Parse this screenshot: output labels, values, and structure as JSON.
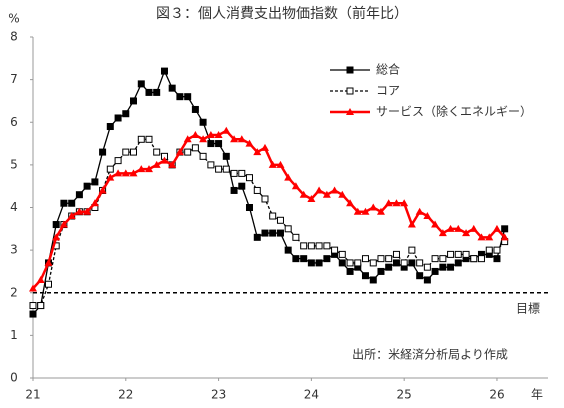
{
  "chart_data": {
    "type": "line",
    "title": "図３：個人消費支出物価指数（前年比）",
    "y_label": "%",
    "x_label": "年",
    "source": "出所：米経済分析局より作成",
    "xlim": [
      21,
      26.55
    ],
    "xticks": [
      21,
      22,
      23,
      24,
      25,
      26
    ],
    "ylim": [
      0,
      8
    ],
    "yticks": [
      0,
      1,
      2,
      3,
      4,
      5,
      6,
      7,
      8
    ],
    "grid": false,
    "legend": "upper right",
    "reference_lines": [
      {
        "value": 2,
        "label": "目標"
      }
    ],
    "x": [
      21,
      21.083,
      21.167,
      21.25,
      21.333,
      21.417,
      21.5,
      21.583,
      21.667,
      21.75,
      21.833,
      21.917,
      22,
      22.083,
      22.167,
      22.25,
      22.333,
      22.417,
      22.5,
      22.583,
      22.667,
      22.75,
      22.833,
      22.917,
      23,
      23.083,
      23.167,
      23.25,
      23.333,
      23.417,
      23.5,
      23.583,
      23.667,
      23.75,
      23.833,
      23.917,
      24,
      24.083,
      24.167,
      24.25,
      24.333,
      24.417,
      24.5,
      24.583,
      24.667,
      24.75,
      24.833,
      24.917,
      25,
      25.083,
      25.167,
      25.25,
      25.333,
      25.417,
      25.5,
      25.583,
      25.667,
      25.75,
      25.833,
      25.917,
      26,
      26.083
    ],
    "series": [
      {
        "name": "総合",
        "color": "#000000",
        "values": [
          1.5,
          1.7,
          2.7,
          3.6,
          4.1,
          4.1,
          4.3,
          4.5,
          4.6,
          5.3,
          5.9,
          6.1,
          6.2,
          6.5,
          6.9,
          6.7,
          6.7,
          7.2,
          6.8,
          6.6,
          6.6,
          6.3,
          6.0,
          5.5,
          5.5,
          5.2,
          4.4,
          4.5,
          4.0,
          3.3,
          3.4,
          3.4,
          3.4,
          3.0,
          2.8,
          2.8,
          2.7,
          2.7,
          2.8,
          2.9,
          2.7,
          2.5,
          2.6,
          2.4,
          2.3,
          2.5,
          2.6,
          2.7,
          2.6,
          2.7,
          2.4,
          2.3,
          2.5,
          2.6,
          2.6,
          2.7,
          2.8,
          2.8,
          2.9,
          2.9,
          2.8,
          3.5
        ]
      },
      {
        "name": "コア",
        "color": "#000000",
        "values": [
          1.7,
          1.7,
          2.2,
          3.1,
          3.6,
          3.8,
          3.9,
          3.9,
          4.0,
          4.4,
          4.9,
          5.1,
          5.3,
          5.3,
          5.6,
          5.6,
          5.3,
          5.2,
          5.0,
          5.3,
          5.3,
          5.4,
          5.2,
          5.0,
          4.9,
          4.9,
          4.8,
          4.8,
          4.7,
          4.4,
          4.2,
          3.8,
          3.7,
          3.5,
          3.3,
          3.1,
          3.1,
          3.1,
          3.1,
          3.0,
          2.9,
          2.7,
          2.7,
          2.8,
          2.7,
          2.8,
          2.8,
          2.9,
          2.7,
          3.0,
          2.7,
          2.6,
          2.8,
          2.8,
          2.9,
          2.9,
          2.9,
          2.8,
          2.8,
          3.0,
          3.0,
          3.2
        ]
      },
      {
        "name": "サービス（除くエネルギー）",
        "color": "#ff0000",
        "values": [
          2.1,
          2.3,
          2.7,
          3.3,
          3.6,
          3.8,
          3.9,
          3.9,
          4.1,
          4.4,
          4.7,
          4.8,
          4.8,
          4.8,
          4.9,
          4.9,
          5.0,
          5.1,
          5.0,
          5.3,
          5.6,
          5.7,
          5.6,
          5.7,
          5.7,
          5.8,
          5.6,
          5.6,
          5.5,
          5.3,
          5.4,
          5.0,
          5.0,
          4.7,
          4.5,
          4.3,
          4.2,
          4.4,
          4.3,
          4.4,
          4.3,
          4.1,
          3.9,
          3.9,
          4.0,
          3.9,
          4.1,
          4.1,
          4.1,
          3.6,
          3.9,
          3.8,
          3.6,
          3.4,
          3.5,
          3.5,
          3.4,
          3.5,
          3.3,
          3.3,
          3.5,
          3.3
        ]
      }
    ]
  }
}
